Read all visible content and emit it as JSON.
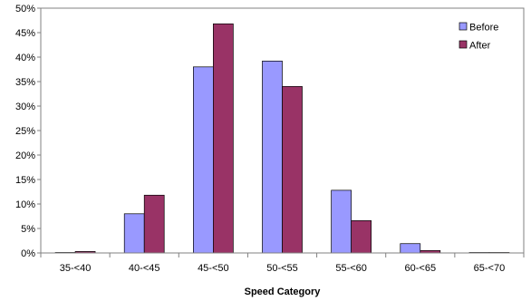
{
  "chart_data": {
    "type": "bar",
    "title": "",
    "xlabel": "Speed Category",
    "ylabel": "",
    "categories": [
      "35-<40",
      "40-<45",
      "45-<50",
      "50-<55",
      "55-<60",
      "60-<65",
      "65-<70"
    ],
    "series": [
      {
        "name": "Before",
        "color": "#9999ff",
        "values": [
          0.1,
          8.0,
          38.0,
          39.2,
          12.8,
          1.9,
          0.1
        ]
      },
      {
        "name": "After",
        "color": "#993366",
        "values": [
          0.3,
          11.8,
          46.8,
          34.0,
          6.6,
          0.5,
          0.1
        ]
      }
    ],
    "ylim": [
      0,
      50
    ],
    "yticks": [
      0,
      5,
      10,
      15,
      20,
      25,
      30,
      35,
      40,
      45,
      50
    ],
    "ytick_labels": [
      "0%",
      "5%",
      "10%",
      "15%",
      "20%",
      "25%",
      "30%",
      "35%",
      "40%",
      "45%",
      "50%"
    ],
    "grid": false,
    "legend_position": "top-right"
  }
}
